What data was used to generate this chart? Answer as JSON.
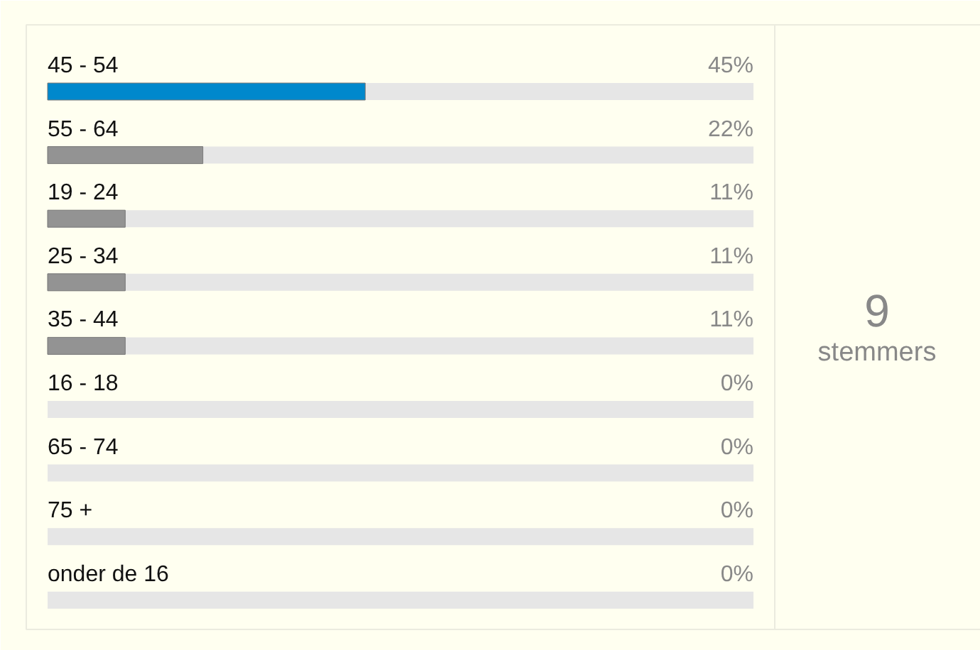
{
  "chart_data": {
    "type": "bar",
    "orientation": "horizontal",
    "categories": [
      "45 - 54",
      "55 - 64",
      "19 - 24",
      "25 - 34",
      "35 - 44",
      "16 - 18",
      "65 - 74",
      "75 +",
      "onder de 16"
    ],
    "values": [
      45,
      22,
      11,
      11,
      11,
      0,
      0,
      0,
      0
    ],
    "colors": [
      "#0088cc",
      "#939393",
      "#939393",
      "#939393",
      "#939393",
      "#939393",
      "#939393",
      "#939393",
      "#939393"
    ],
    "value_labels": [
      "45%",
      "22%",
      "11%",
      "11%",
      "11%",
      "0%",
      "0%",
      "0%",
      "0%"
    ],
    "xlim": [
      0,
      100
    ],
    "annotations": [
      "9",
      "stemmers"
    ]
  }
}
